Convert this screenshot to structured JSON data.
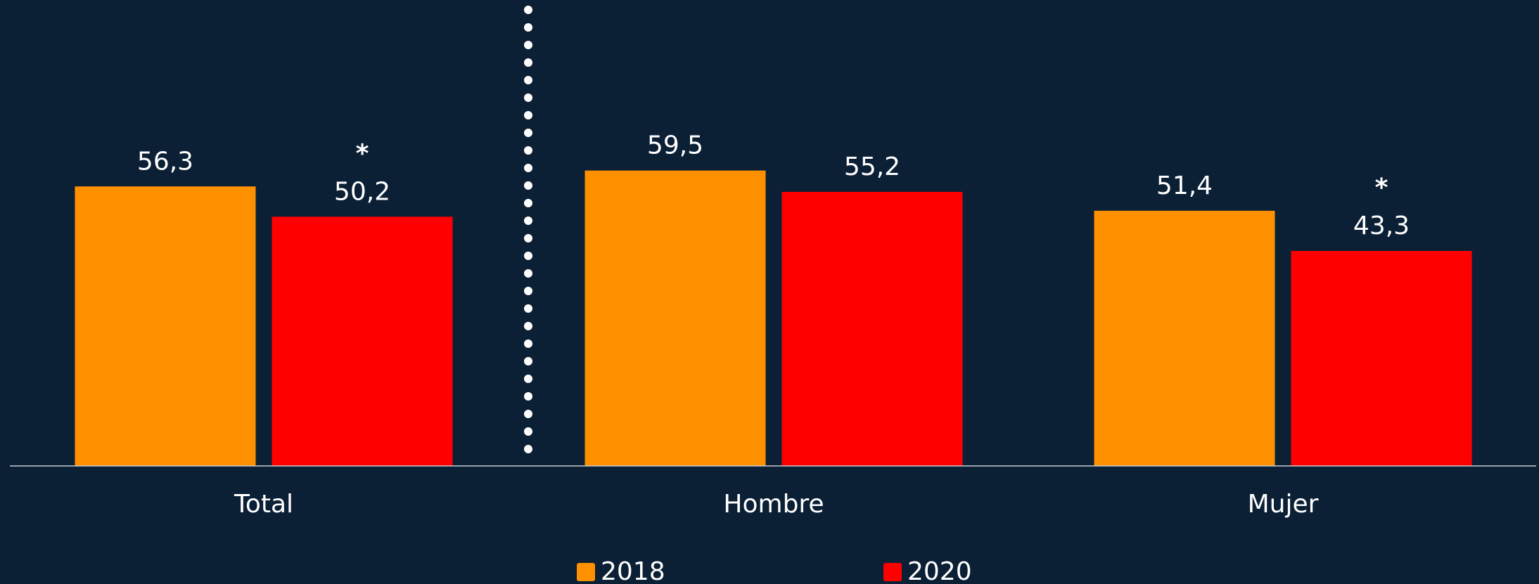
{
  "chart_data": {
    "type": "bar",
    "categories": [
      "Total",
      "Hombre",
      "Mujer"
    ],
    "series": [
      {
        "name": "2018",
        "color": "#ff9100",
        "values": [
          56.3,
          59.5,
          51.4
        ],
        "value_labels": [
          "56,3",
          "59,5",
          "51,4"
        ]
      },
      {
        "name": "2020",
        "color": "#ff0000",
        "values": [
          50.2,
          55.2,
          43.3
        ],
        "value_labels": [
          "50,2",
          "55,2",
          "43,3"
        ],
        "annotations": [
          "*",
          null,
          "*"
        ]
      }
    ],
    "ylim": [
      0,
      93
    ],
    "grid": false
  }
}
